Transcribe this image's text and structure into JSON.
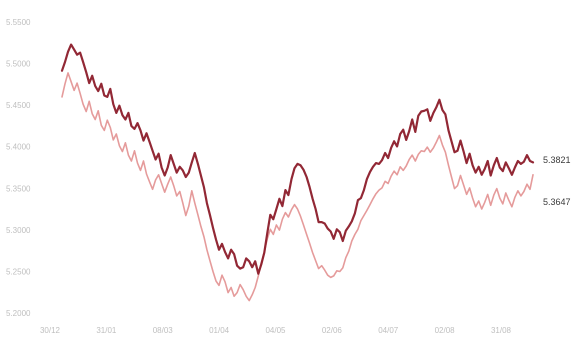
{
  "chart_data": {
    "type": "line",
    "title": "",
    "xlabel": "",
    "ylabel": "",
    "x_tick_labels": [
      "30/12",
      "31/01",
      "08/03",
      "01/04",
      "04/05",
      "02/06",
      "04/07",
      "02/08",
      "31/08"
    ],
    "y_tick_labels": [
      "5.5500",
      "5.5000",
      "5.4500",
      "5.4000",
      "5.3500",
      "5.3000",
      "5.2500",
      "5.2000"
    ],
    "ylim": [
      5.175,
      5.575
    ],
    "grid": false,
    "legend": "none",
    "end_labels": [
      "5.3821",
      "5.3647"
    ],
    "series": [
      {
        "color": "#8c1c2a",
        "end_label": "5.3821",
        "values": [
          5.508,
          5.52,
          5.534,
          5.544,
          5.537,
          5.53,
          5.533,
          5.52,
          5.506,
          5.491,
          5.501,
          5.487,
          5.48,
          5.49,
          5.474,
          5.472,
          5.483,
          5.462,
          5.45,
          5.46,
          5.447,
          5.441,
          5.45,
          5.432,
          5.428,
          5.436,
          5.426,
          5.412,
          5.422,
          5.41,
          5.398,
          5.386,
          5.394,
          5.375,
          5.364,
          5.375,
          5.392,
          5.38,
          5.368,
          5.376,
          5.371,
          5.362,
          5.368,
          5.382,
          5.395,
          5.38,
          5.364,
          5.348,
          5.326,
          5.31,
          5.292,
          5.276,
          5.262,
          5.27,
          5.259,
          5.25,
          5.262,
          5.256,
          5.24,
          5.236,
          5.238,
          5.25,
          5.246,
          5.238,
          5.246,
          5.229,
          5.242,
          5.258,
          5.285,
          5.31,
          5.304,
          5.318,
          5.332,
          5.322,
          5.344,
          5.337,
          5.359,
          5.374,
          5.38,
          5.378,
          5.372,
          5.362,
          5.348,
          5.332,
          5.318,
          5.3,
          5.3,
          5.298,
          5.291,
          5.287,
          5.277,
          5.29,
          5.286,
          5.274,
          5.288,
          5.294,
          5.301,
          5.312,
          5.33,
          5.333,
          5.344,
          5.359,
          5.369,
          5.376,
          5.381,
          5.38,
          5.385,
          5.395,
          5.388,
          5.402,
          5.411,
          5.404,
          5.421,
          5.427,
          5.413,
          5.425,
          5.441,
          5.424,
          5.446,
          5.452,
          5.453,
          5.455,
          5.439,
          5.45,
          5.458,
          5.468,
          5.454,
          5.448,
          5.426,
          5.411,
          5.396,
          5.398,
          5.412,
          5.397,
          5.381,
          5.394,
          5.378,
          5.368,
          5.376,
          5.365,
          5.373,
          5.384,
          5.364,
          5.378,
          5.388,
          5.375,
          5.37,
          5.382,
          5.374,
          5.365,
          5.375,
          5.384,
          5.38,
          5.383,
          5.392,
          5.384,
          5.382
        ]
      },
      {
        "color": "#e08a8a",
        "end_label": "5.3647",
        "values": [
          5.472,
          5.49,
          5.505,
          5.493,
          5.481,
          5.491,
          5.477,
          5.462,
          5.452,
          5.466,
          5.449,
          5.441,
          5.453,
          5.433,
          5.426,
          5.44,
          5.43,
          5.413,
          5.421,
          5.405,
          5.397,
          5.409,
          5.392,
          5.384,
          5.398,
          5.381,
          5.371,
          5.384,
          5.366,
          5.355,
          5.345,
          5.358,
          5.365,
          5.353,
          5.341,
          5.352,
          5.362,
          5.35,
          5.336,
          5.342,
          5.326,
          5.309,
          5.322,
          5.343,
          5.326,
          5.31,
          5.294,
          5.28,
          5.262,
          5.247,
          5.232,
          5.219,
          5.213,
          5.227,
          5.218,
          5.203,
          5.21,
          5.198,
          5.203,
          5.214,
          5.207,
          5.198,
          5.192,
          5.2,
          5.21,
          5.226,
          5.244,
          5.259,
          5.277,
          5.29,
          5.283,
          5.296,
          5.289,
          5.304,
          5.313,
          5.307,
          5.317,
          5.324,
          5.318,
          5.308,
          5.296,
          5.283,
          5.271,
          5.258,
          5.247,
          5.236,
          5.24,
          5.234,
          5.227,
          5.224,
          5.226,
          5.233,
          5.232,
          5.237,
          5.251,
          5.26,
          5.274,
          5.283,
          5.29,
          5.302,
          5.309,
          5.316,
          5.324,
          5.332,
          5.339,
          5.344,
          5.347,
          5.356,
          5.353,
          5.363,
          5.37,
          5.365,
          5.376,
          5.371,
          5.377,
          5.386,
          5.392,
          5.384,
          5.393,
          5.398,
          5.397,
          5.403,
          5.396,
          5.402,
          5.41,
          5.419,
          5.406,
          5.396,
          5.378,
          5.362,
          5.346,
          5.35,
          5.364,
          5.351,
          5.338,
          5.347,
          5.333,
          5.321,
          5.329,
          5.318,
          5.327,
          5.338,
          5.323,
          5.337,
          5.346,
          5.333,
          5.325,
          5.34,
          5.33,
          5.321,
          5.334,
          5.343,
          5.336,
          5.342,
          5.352,
          5.345,
          5.365
        ]
      }
    ]
  }
}
